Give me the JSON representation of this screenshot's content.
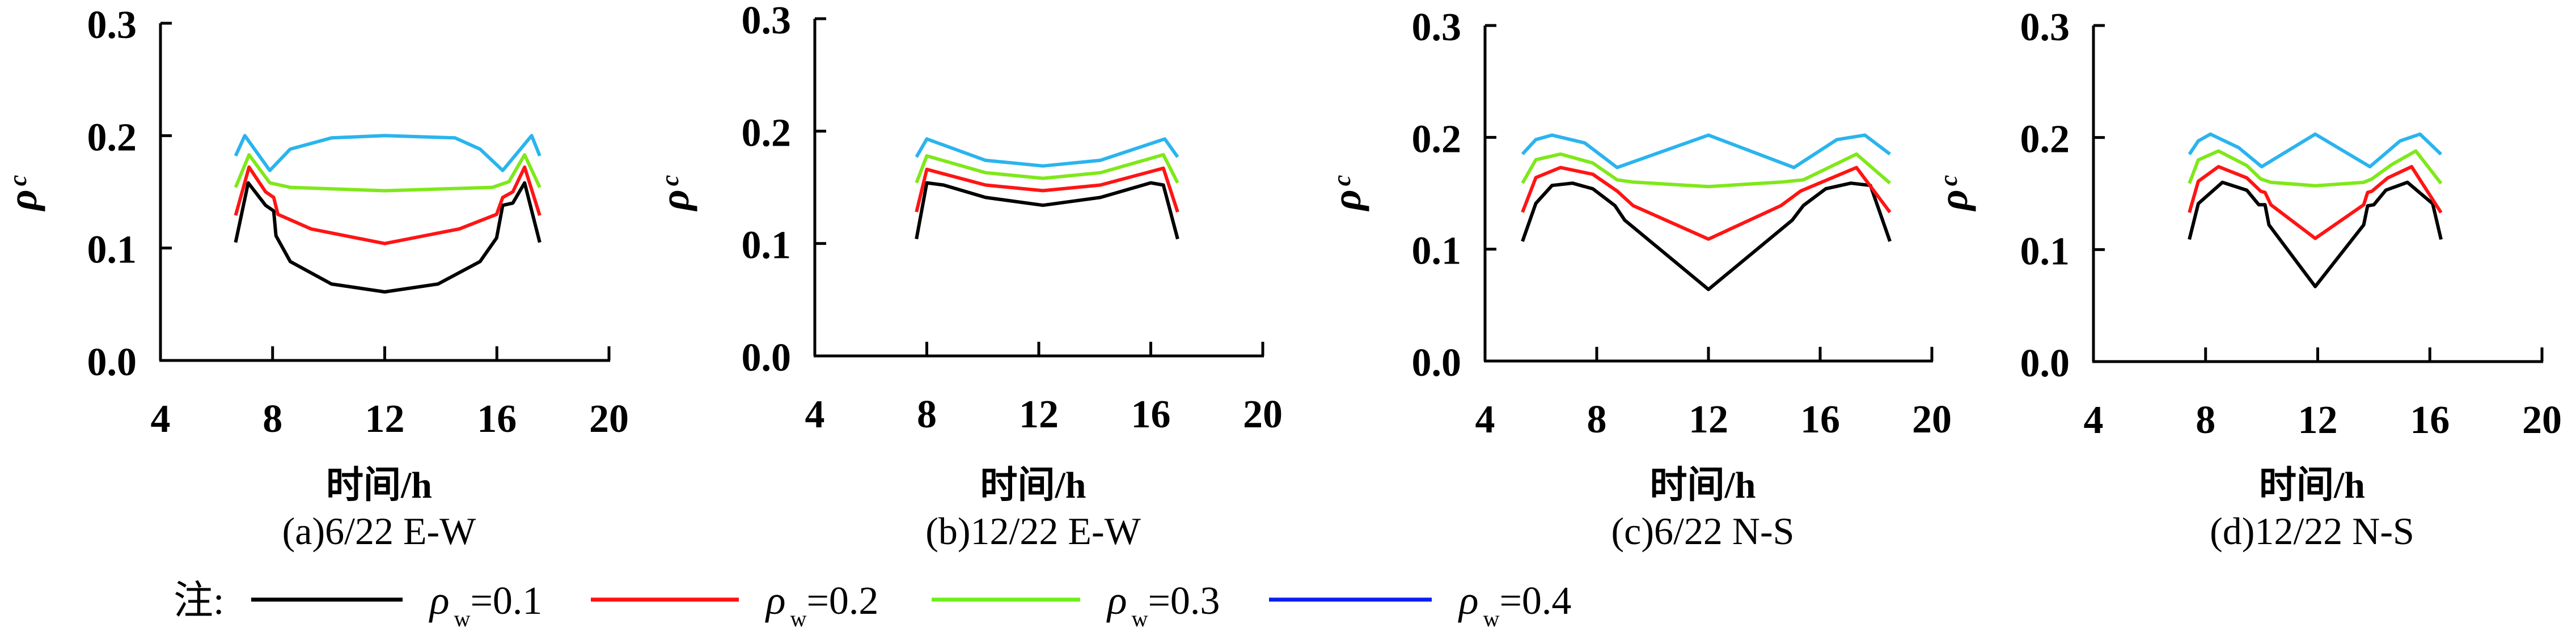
{
  "chart_data": [
    {
      "type": "line",
      "panel": "a",
      "caption": "(a)6/22 E-W",
      "xlabel": "时间/h",
      "ylabel": "ρ",
      "ylabel_sub": "c",
      "xlim": [
        4,
        20
      ],
      "ylim": [
        0.0,
        0.3
      ],
      "xticks": [
        "4",
        "8",
        "12",
        "16",
        "20"
      ],
      "yticks": [
        "0.0",
        "0.1",
        "0.2",
        "0.3"
      ],
      "grid": false,
      "series": [
        {
          "name": "ρw=0.1",
          "x": [
            6.68,
            7.13,
            7.75,
            8.04,
            8.12,
            8.63,
            10.1,
            12.0,
            13.9,
            15.4,
            15.99,
            16.21,
            16.57,
            16.99,
            17.53
          ],
          "y": [
            0.105,
            0.158,
            0.138,
            0.133,
            0.111,
            0.088,
            0.068,
            0.061,
            0.068,
            0.088,
            0.109,
            0.138,
            0.14,
            0.158,
            0.105
          ]
        },
        {
          "name": "ρw=0.2",
          "x": [
            6.68,
            7.16,
            7.75,
            8.04,
            8.19,
            9.37,
            12.0,
            14.66,
            15.99,
            16.21,
            16.57,
            16.99,
            17.53
          ],
          "y": [
            0.129,
            0.172,
            0.15,
            0.145,
            0.13,
            0.117,
            0.104,
            0.117,
            0.13,
            0.145,
            0.15,
            0.172,
            0.129
          ]
        },
        {
          "name": "ρw=0.3",
          "x": [
            6.68,
            7.16,
            7.9,
            8.63,
            12.0,
            15.84,
            16.43,
            16.99,
            17.53
          ],
          "y": [
            0.154,
            0.183,
            0.158,
            0.154,
            0.151,
            0.154,
            0.159,
            0.183,
            0.154
          ]
        },
        {
          "name": "ρw=0.4",
          "x": [
            6.68,
            7.01,
            7.9,
            8.63,
            10.1,
            12.0,
            14.51,
            15.4,
            16.21,
            17.24,
            17.53
          ],
          "y": [
            0.182,
            0.2,
            0.169,
            0.188,
            0.198,
            0.2,
            0.198,
            0.188,
            0.169,
            0.2,
            0.182
          ]
        }
      ]
    },
    {
      "type": "line",
      "panel": "b",
      "caption": "(b)12/22 E-W",
      "xlabel": "时间/h",
      "ylabel": "ρ",
      "ylabel_sub": "c",
      "xlim": [
        4,
        20
      ],
      "ylim": [
        0.0,
        0.3
      ],
      "xticks": [
        "4",
        "8",
        "12",
        "16",
        "20"
      ],
      "yticks": [
        "0.0",
        "0.1",
        "0.2",
        "0.3"
      ],
      "grid": false,
      "series": [
        {
          "name": "ρw=0.1",
          "x": [
            7.63,
            8.0,
            8.6,
            10.1,
            12.15,
            14.2,
            16.0,
            16.45,
            16.96
          ],
          "y": [
            0.104,
            0.154,
            0.152,
            0.141,
            0.134,
            0.141,
            0.154,
            0.152,
            0.104
          ]
        },
        {
          "name": "ρw=0.2",
          "x": [
            7.63,
            8.0,
            10.1,
            12.15,
            14.2,
            16.45,
            16.96
          ],
          "y": [
            0.128,
            0.166,
            0.152,
            0.147,
            0.152,
            0.167,
            0.128
          ]
        },
        {
          "name": "ρw=0.3",
          "x": [
            7.63,
            8.0,
            10.1,
            12.15,
            14.2,
            16.45,
            16.96
          ],
          "y": [
            0.154,
            0.178,
            0.163,
            0.158,
            0.163,
            0.179,
            0.154
          ]
        },
        {
          "name": "ρw=0.4",
          "x": [
            7.63,
            8.0,
            10.1,
            12.15,
            14.2,
            16.5,
            16.96
          ],
          "y": [
            0.177,
            0.193,
            0.174,
            0.169,
            0.174,
            0.193,
            0.177
          ]
        }
      ]
    },
    {
      "type": "line",
      "panel": "c",
      "caption": "(c)6/22 N-S",
      "xlabel": "时间/h",
      "ylabel": "ρ",
      "ylabel_sub": "c",
      "xlim": [
        4,
        20
      ],
      "ylim": [
        0.0,
        0.3
      ],
      "xticks": [
        "4",
        "8",
        "12",
        "16",
        "20"
      ],
      "yticks": [
        "0.0",
        "0.1",
        "0.2",
        "0.3"
      ],
      "grid": false,
      "series": [
        {
          "name": "ρw=0.1",
          "x": [
            5.34,
            5.82,
            6.4,
            7.13,
            7.86,
            8.65,
            9.0,
            12.0,
            15.0,
            15.4,
            16.2,
            17.1,
            17.8,
            18.5
          ],
          "y": [
            0.107,
            0.141,
            0.157,
            0.159,
            0.154,
            0.139,
            0.126,
            0.064,
            0.126,
            0.139,
            0.154,
            0.159,
            0.157,
            0.107
          ]
        },
        {
          "name": "ρw=0.2",
          "x": [
            5.34,
            5.82,
            6.7,
            7.86,
            8.73,
            9.3,
            12.0,
            14.6,
            15.3,
            17.3,
            18.5
          ],
          "y": [
            0.133,
            0.164,
            0.173,
            0.167,
            0.152,
            0.139,
            0.109,
            0.139,
            0.152,
            0.173,
            0.133
          ]
        },
        {
          "name": "ρw=0.3",
          "x": [
            5.34,
            5.82,
            6.7,
            7.86,
            8.73,
            9.3,
            12.0,
            14.6,
            15.4,
            17.3,
            18.5
          ],
          "y": [
            0.159,
            0.18,
            0.185,
            0.177,
            0.162,
            0.16,
            0.156,
            0.16,
            0.162,
            0.185,
            0.159
          ]
        },
        {
          "name": "ρw=0.4",
          "x": [
            5.34,
            5.82,
            6.4,
            7.57,
            8.73,
            12.0,
            15.06,
            16.6,
            17.6,
            18.5
          ],
          "y": [
            0.185,
            0.198,
            0.202,
            0.195,
            0.173,
            0.202,
            0.173,
            0.198,
            0.202,
            0.185
          ]
        }
      ]
    },
    {
      "type": "line",
      "panel": "d",
      "caption": "(d)12/22 N-S",
      "xlabel": "时间/h",
      "ylabel": "ρ",
      "ylabel_sub": "c",
      "xlim": [
        4,
        20
      ],
      "ylim": [
        0.0,
        0.3
      ],
      "xticks": [
        "4",
        "8",
        "12",
        "16",
        "20"
      ],
      "yticks": [
        "0.0",
        "0.1",
        "0.2",
        "0.3"
      ],
      "grid": false,
      "series": [
        {
          "name": "ρw=0.1",
          "x": [
            7.42,
            7.74,
            8.6,
            9.47,
            9.9,
            10.12,
            10.26,
            11.91,
            13.64,
            13.78,
            14.0,
            14.43,
            15.2,
            16.1,
            16.4
          ],
          "y": [
            0.109,
            0.141,
            0.16,
            0.153,
            0.14,
            0.14,
            0.122,
            0.067,
            0.122,
            0.139,
            0.14,
            0.153,
            0.16,
            0.141,
            0.109
          ]
        },
        {
          "name": "ρw=0.2",
          "x": [
            7.42,
            7.74,
            8.46,
            9.47,
            9.97,
            10.12,
            10.33,
            11.91,
            13.64,
            13.78,
            13.93,
            14.5,
            15.35,
            16.4
          ],
          "y": [
            0.133,
            0.161,
            0.174,
            0.164,
            0.152,
            0.151,
            0.14,
            0.11,
            0.14,
            0.151,
            0.152,
            0.164,
            0.174,
            0.133
          ]
        },
        {
          "name": "ρw=0.3",
          "x": [
            7.42,
            7.74,
            8.46,
            9.47,
            9.97,
            10.33,
            11.91,
            13.64,
            13.93,
            14.65,
            15.5,
            16.4
          ],
          "y": [
            0.159,
            0.18,
            0.188,
            0.175,
            0.163,
            0.16,
            0.157,
            0.16,
            0.163,
            0.176,
            0.188,
            0.159
          ]
        },
        {
          "name": "ρw=0.4",
          "x": [
            7.42,
            7.74,
            8.17,
            9.18,
            10.0,
            11.91,
            13.86,
            14.94,
            15.65,
            16.4
          ],
          "y": [
            0.185,
            0.197,
            0.203,
            0.191,
            0.174,
            0.203,
            0.174,
            0.197,
            0.203,
            0.185
          ]
        }
      ]
    }
  ],
  "series_colors": [
    "#000000",
    "#ff1414",
    "#7fe81a",
    "#2ab4ee"
  ],
  "legend": {
    "prefix": "注:",
    "position": "bottom-left",
    "items": [
      {
        "symbol": "ρ",
        "sub": "w",
        "value": "=0.1",
        "color": "#000000"
      },
      {
        "symbol": "ρ",
        "sub": "w",
        "value": "=0.2",
        "color": "#ff1010"
      },
      {
        "symbol": "ρ",
        "sub": "w",
        "value": "=0.3",
        "color": "#6ef01a"
      },
      {
        "symbol": "ρ",
        "sub": "w",
        "value": "=0.4",
        "color": "#0a1ef0"
      }
    ]
  }
}
